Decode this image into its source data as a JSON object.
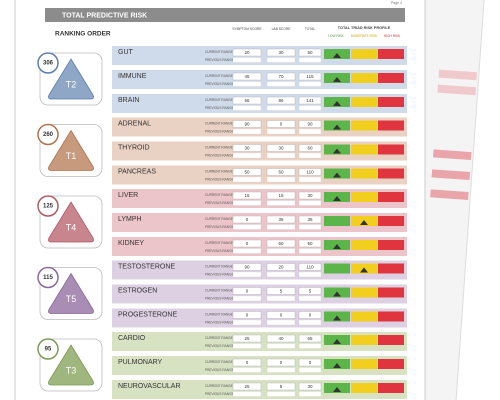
{
  "header": {
    "title": "TOTAL PREDICTIVE RISK",
    "page": "Page 4"
  },
  "ranking_label": "RANKING ORDER",
  "columns": {
    "symptom": "SYMPTOM SCORE",
    "lab": "LAB SCORE",
    "total": "TOTAL",
    "profile": "TOTAL TRIAD RISK PROFILE",
    "low": "LOW RISK",
    "moderate": "MODERATE RISK",
    "high": "HIGH RISK"
  },
  "range_labels": {
    "current": "CURRENT RANGE",
    "previous": "PREVIOUS RANGE"
  },
  "groups": [
    {
      "score": 306,
      "triad": "T2",
      "rows": [
        {
          "name": "GUT",
          "symptom": 20,
          "lab": 30,
          "total": 50
        },
        {
          "name": "IMMUNE",
          "symptom": 45,
          "lab": 70,
          "total": 115
        },
        {
          "name": "BRAIN",
          "symptom": 55,
          "lab": 86,
          "total": 141
        }
      ]
    },
    {
      "score": 260,
      "triad": "T1",
      "rows": [
        {
          "name": "ADRENAL",
          "symptom": 90,
          "lab": 0,
          "total": 90
        },
        {
          "name": "THYROID",
          "symptom": 30,
          "lab": 30,
          "total": 60
        },
        {
          "name": "PANCREAS",
          "symptom": 50,
          "lab": 60,
          "total": 110
        }
      ]
    },
    {
      "score": 125,
      "triad": "T4",
      "rows": [
        {
          "name": "LIVER",
          "symptom": 15,
          "lab": 15,
          "total": 30
        },
        {
          "name": "LYMPH",
          "symptom": 0,
          "lab": 35,
          "total": 35
        },
        {
          "name": "KIDNEY",
          "symptom": 0,
          "lab": 60,
          "total": 60
        }
      ]
    },
    {
      "score": 115,
      "triad": "T5",
      "rows": [
        {
          "name": "TESTOSTERONE",
          "symptom": 90,
          "lab": 20,
          "total": 110
        },
        {
          "name": "ESTROGEN",
          "symptom": 0,
          "lab": 5,
          "total": 5
        },
        {
          "name": "PROGESTERONE",
          "symptom": 0,
          "lab": 0,
          "total": 0
        }
      ]
    },
    {
      "score": 95,
      "triad": "T3",
      "rows": [
        {
          "name": "CARDIO",
          "symptom": 25,
          "lab": 40,
          "total": 65
        },
        {
          "name": "PULMONARY",
          "symptom": 0,
          "lab": 0,
          "total": 0
        },
        {
          "name": "NEUROVASCULAR",
          "symptom": 25,
          "lab": 5,
          "total": 30
        }
      ]
    }
  ]
}
